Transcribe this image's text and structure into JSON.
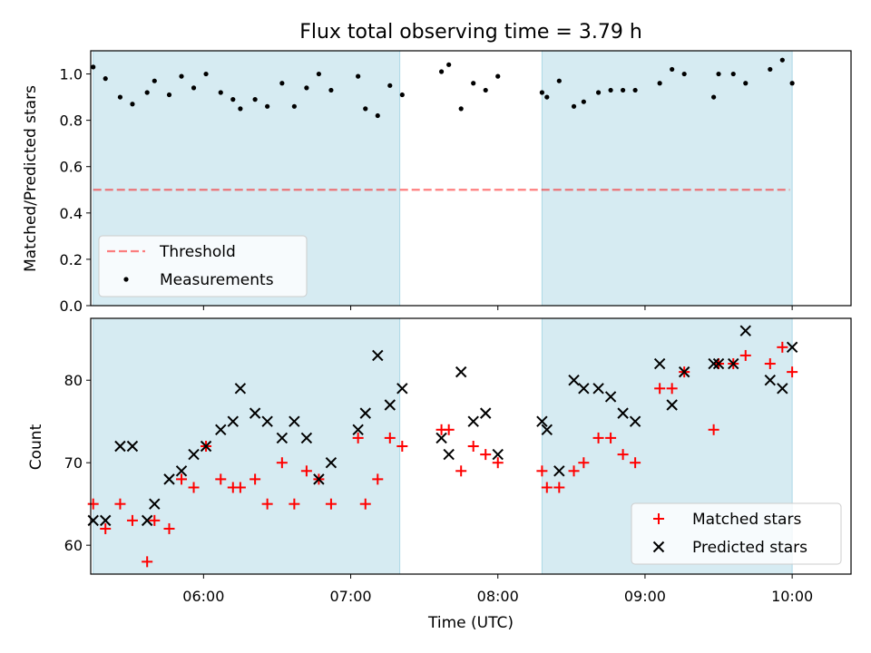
{
  "figure": {
    "title": "Flux total observing time = 3.79 h",
    "xlabel": "Time (UTC)"
  },
  "colors": {
    "shade": "#add8e6",
    "threshold": "#ff0000",
    "measurement": "#000000",
    "matched": "#ff0000",
    "predicted": "#000000"
  },
  "chart_data": [
    {
      "type": "scatter",
      "ylabel": "Matched/Predicted stars",
      "x_range": [
        "05:14",
        "10:24"
      ],
      "ylim": [
        0.0,
        1.1
      ],
      "yticks": [
        "0.0",
        "0.2",
        "0.4",
        "0.6",
        "0.8",
        "1.0"
      ],
      "xticks": [
        "06:00",
        "07:00",
        "08:00",
        "09:00",
        "10:00"
      ],
      "shaded_intervals": [
        [
          "05:15",
          "07:20"
        ],
        [
          "08:18",
          "10:00"
        ]
      ],
      "legend_position": "lower left",
      "threshold": {
        "name": "Threshold",
        "value": 0.5,
        "x_range": [
          "05:15",
          "09:59"
        ],
        "style": "dashed"
      },
      "series": [
        {
          "name": "Measurements",
          "points": [
            [
              "05:15",
              1.03
            ],
            [
              "05:20",
              0.98
            ],
            [
              "05:26",
              0.9
            ],
            [
              "05:31",
              0.87
            ],
            [
              "05:37",
              0.92
            ],
            [
              "05:40",
              0.97
            ],
            [
              "05:46",
              0.91
            ],
            [
              "05:51",
              0.99
            ],
            [
              "05:56",
              0.94
            ],
            [
              "06:01",
              1.0
            ],
            [
              "06:07",
              0.92
            ],
            [
              "06:12",
              0.89
            ],
            [
              "06:15",
              0.85
            ],
            [
              "06:21",
              0.89
            ],
            [
              "06:26",
              0.86
            ],
            [
              "06:32",
              0.96
            ],
            [
              "06:37",
              0.86
            ],
            [
              "06:42",
              0.94
            ],
            [
              "06:47",
              1.0
            ],
            [
              "06:52",
              0.93
            ],
            [
              "07:03",
              0.99
            ],
            [
              "07:06",
              0.85
            ],
            [
              "07:11",
              0.82
            ],
            [
              "07:16",
              0.95
            ],
            [
              "07:21",
              0.91
            ],
            [
              "07:37",
              1.01
            ],
            [
              "07:40",
              1.04
            ],
            [
              "07:45",
              0.85
            ],
            [
              "07:50",
              0.96
            ],
            [
              "07:55",
              0.93
            ],
            [
              "08:00",
              0.99
            ],
            [
              "08:18",
              0.92
            ],
            [
              "08:20",
              0.9
            ],
            [
              "08:25",
              0.97
            ],
            [
              "08:31",
              0.86
            ],
            [
              "08:35",
              0.88
            ],
            [
              "08:41",
              0.92
            ],
            [
              "08:46",
              0.93
            ],
            [
              "08:51",
              0.93
            ],
            [
              "08:56",
              0.93
            ],
            [
              "09:06",
              0.96
            ],
            [
              "09:11",
              1.02
            ],
            [
              "09:16",
              1.0
            ],
            [
              "09:28",
              0.9
            ],
            [
              "09:30",
              1.0
            ],
            [
              "09:36",
              1.0
            ],
            [
              "09:41",
              0.96
            ],
            [
              "09:51",
              1.02
            ],
            [
              "09:56",
              1.06
            ],
            [
              "10:00",
              0.96
            ]
          ]
        }
      ]
    },
    {
      "type": "scatter",
      "ylabel": "Count",
      "x_range": [
        "05:14",
        "10:24"
      ],
      "ylim": [
        56.5,
        87.5
      ],
      "yticks": [
        "60",
        "70",
        "80"
      ],
      "xticks": [
        "06:00",
        "07:00",
        "08:00",
        "09:00",
        "10:00"
      ],
      "shaded_intervals": [
        [
          "05:15",
          "07:20"
        ],
        [
          "08:18",
          "10:00"
        ]
      ],
      "legend_position": "lower right",
      "series": [
        {
          "name": "Matched stars",
          "marker": "+",
          "points": [
            [
              "05:15",
              65
            ],
            [
              "05:20",
              62
            ],
            [
              "05:26",
              65
            ],
            [
              "05:31",
              63
            ],
            [
              "05:37",
              58
            ],
            [
              "05:40",
              63
            ],
            [
              "05:46",
              62
            ],
            [
              "05:51",
              68
            ],
            [
              "05:56",
              67
            ],
            [
              "06:01",
              72
            ],
            [
              "06:07",
              68
            ],
            [
              "06:12",
              67
            ],
            [
              "06:15",
              67
            ],
            [
              "06:21",
              68
            ],
            [
              "06:26",
              65
            ],
            [
              "06:32",
              70
            ],
            [
              "06:37",
              65
            ],
            [
              "06:42",
              69
            ],
            [
              "06:47",
              68
            ],
            [
              "06:52",
              65
            ],
            [
              "07:03",
              73
            ],
            [
              "07:06",
              65
            ],
            [
              "07:11",
              68
            ],
            [
              "07:16",
              73
            ],
            [
              "07:21",
              72
            ],
            [
              "07:37",
              74
            ],
            [
              "07:40",
              74
            ],
            [
              "07:45",
              69
            ],
            [
              "07:50",
              72
            ],
            [
              "07:55",
              71
            ],
            [
              "08:00",
              70
            ],
            [
              "08:18",
              69
            ],
            [
              "08:20",
              67
            ],
            [
              "08:25",
              67
            ],
            [
              "08:31",
              69
            ],
            [
              "08:35",
              70
            ],
            [
              "08:41",
              73
            ],
            [
              "08:46",
              73
            ],
            [
              "08:51",
              71
            ],
            [
              "08:56",
              70
            ],
            [
              "09:06",
              79
            ],
            [
              "09:11",
              79
            ],
            [
              "09:16",
              81
            ],
            [
              "09:28",
              74
            ],
            [
              "09:30",
              82
            ],
            [
              "09:36",
              82
            ],
            [
              "09:41",
              83
            ],
            [
              "09:51",
              82
            ],
            [
              "09:56",
              84
            ],
            [
              "10:00",
              81
            ]
          ]
        },
        {
          "name": "Predicted stars",
          "marker": "x",
          "points": [
            [
              "05:15",
              63
            ],
            [
              "05:20",
              63
            ],
            [
              "05:26",
              72
            ],
            [
              "05:31",
              72
            ],
            [
              "05:37",
              63
            ],
            [
              "05:40",
              65
            ],
            [
              "05:46",
              68
            ],
            [
              "05:51",
              69
            ],
            [
              "05:56",
              71
            ],
            [
              "06:01",
              72
            ],
            [
              "06:07",
              74
            ],
            [
              "06:12",
              75
            ],
            [
              "06:15",
              79
            ],
            [
              "06:21",
              76
            ],
            [
              "06:26",
              75
            ],
            [
              "06:32",
              73
            ],
            [
              "06:37",
              75
            ],
            [
              "06:42",
              73
            ],
            [
              "06:47",
              68
            ],
            [
              "06:52",
              70
            ],
            [
              "07:03",
              74
            ],
            [
              "07:06",
              76
            ],
            [
              "07:11",
              83
            ],
            [
              "07:16",
              77
            ],
            [
              "07:21",
              79
            ],
            [
              "07:37",
              73
            ],
            [
              "07:40",
              71
            ],
            [
              "07:45",
              81
            ],
            [
              "07:50",
              75
            ],
            [
              "07:55",
              76
            ],
            [
              "08:00",
              71
            ],
            [
              "08:18",
              75
            ],
            [
              "08:20",
              74
            ],
            [
              "08:25",
              69
            ],
            [
              "08:31",
              80
            ],
            [
              "08:35",
              79
            ],
            [
              "08:41",
              79
            ],
            [
              "08:46",
              78
            ],
            [
              "08:51",
              76
            ],
            [
              "08:56",
              75
            ],
            [
              "09:06",
              82
            ],
            [
              "09:11",
              77
            ],
            [
              "09:16",
              81
            ],
            [
              "09:28",
              82
            ],
            [
              "09:30",
              82
            ],
            [
              "09:36",
              82
            ],
            [
              "09:41",
              86
            ],
            [
              "09:51",
              80
            ],
            [
              "09:56",
              79
            ],
            [
              "10:00",
              84
            ]
          ]
        }
      ]
    }
  ]
}
